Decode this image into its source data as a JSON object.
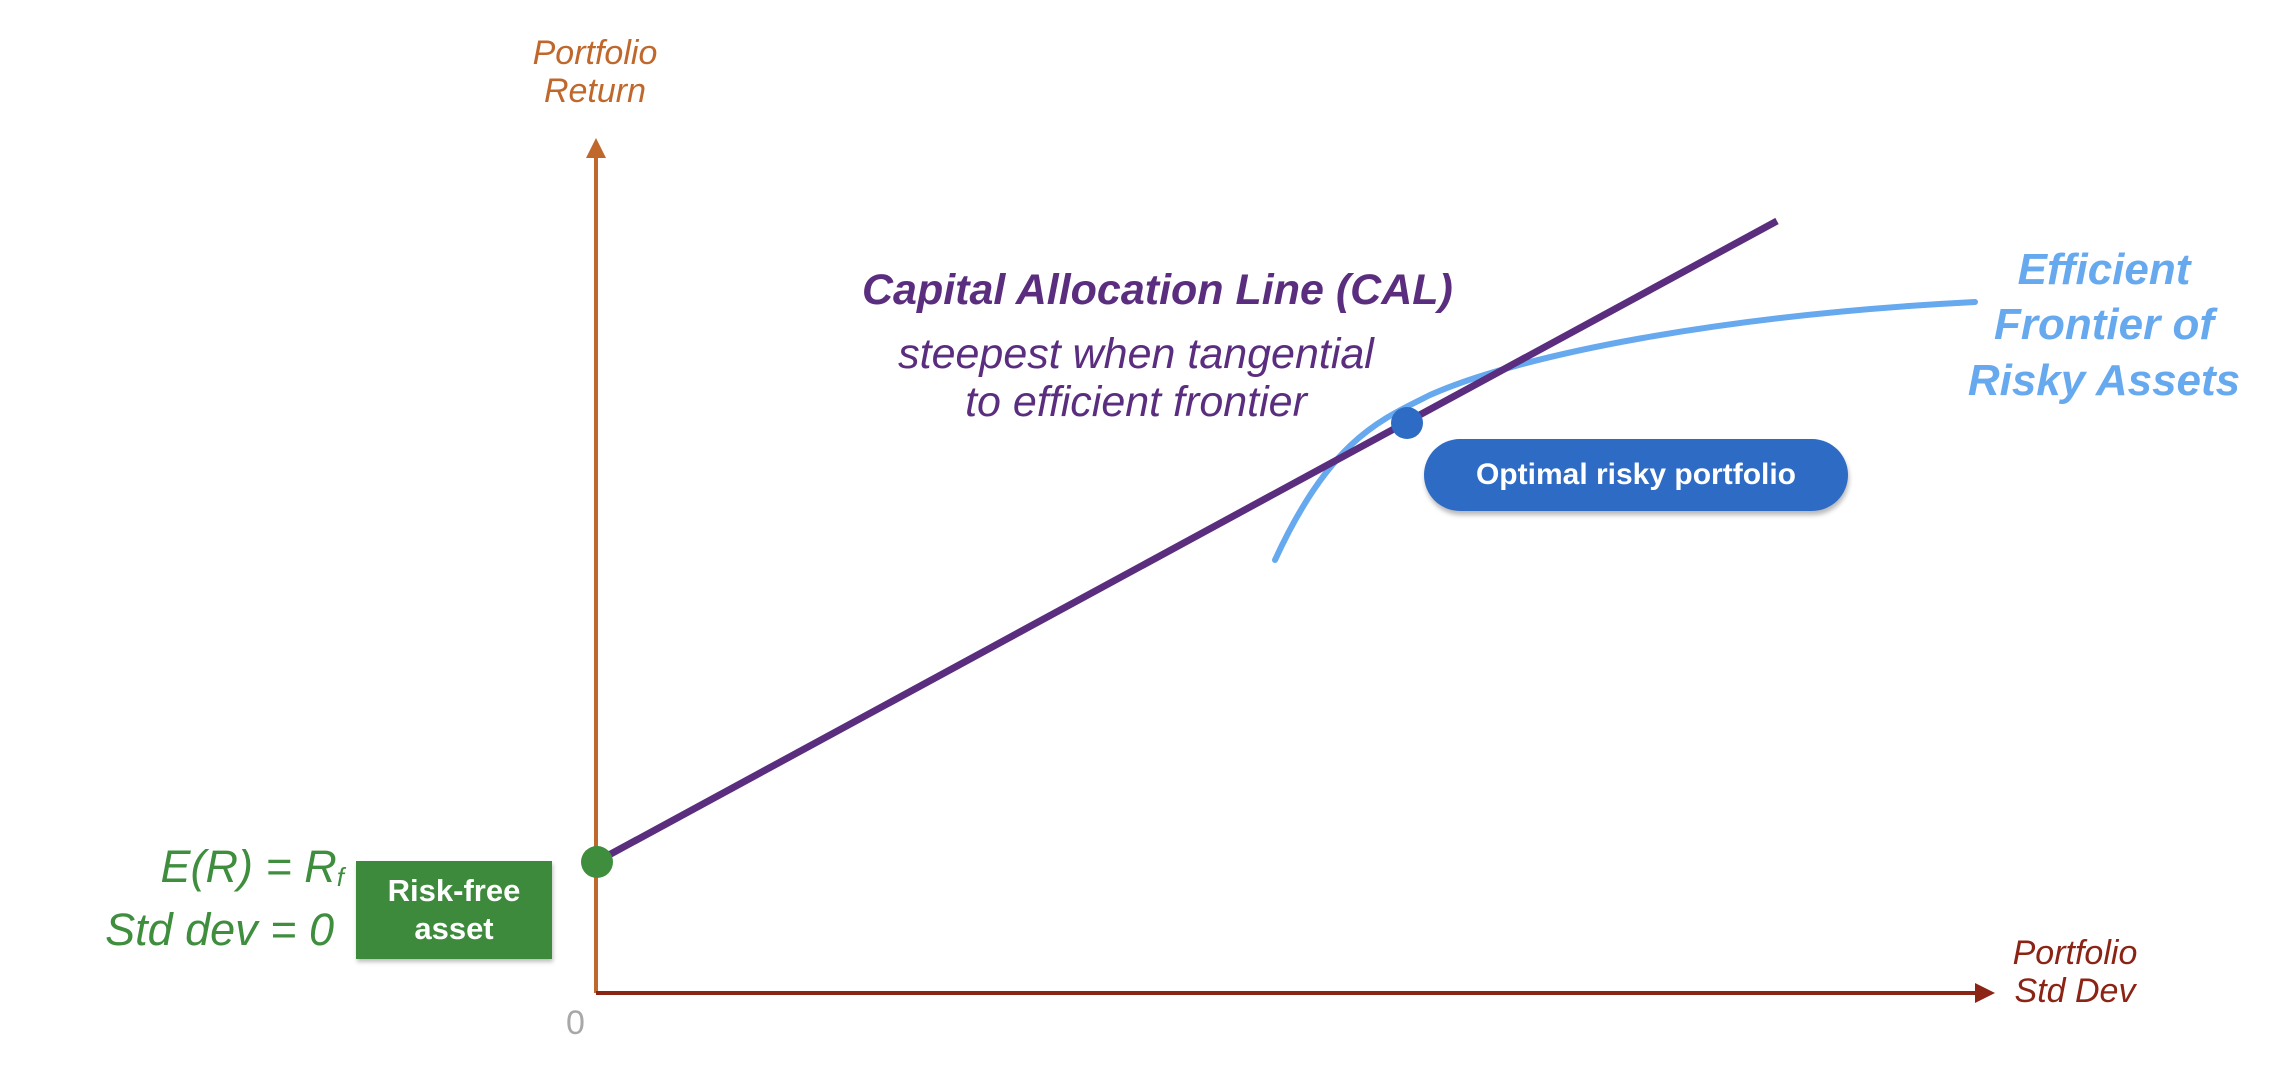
{
  "axes": {
    "y_label": [
      "Portfolio",
      "Return"
    ],
    "x_label": [
      "Portfolio",
      "Std Dev"
    ],
    "origin": "0"
  },
  "cal": {
    "title": "Capital Allocation Line (CAL)",
    "subtitle": [
      "steepest when tangential",
      "to efficient frontier"
    ]
  },
  "frontier": {
    "label": [
      "Efficient",
      "Frontier of",
      "Risky Assets"
    ]
  },
  "risk_free": {
    "expected_return_prefix": "E(R) = R",
    "expected_return_subscript": "f",
    "std_dev": "Std dev = 0",
    "box_label": [
      "Risk-free",
      "asset"
    ]
  },
  "optimal": {
    "label": "Optimal risky portfolio"
  },
  "colors": {
    "y_axis": "#c0682c",
    "x_axis": "#8b2415",
    "cal_line": "#5a2d7e",
    "frontier_curve": "#67a9ee",
    "optimal_point": "#2d6bc4",
    "risk_free_point": "#3e8e3e",
    "risk_free_box": "#3d8a3d"
  }
}
